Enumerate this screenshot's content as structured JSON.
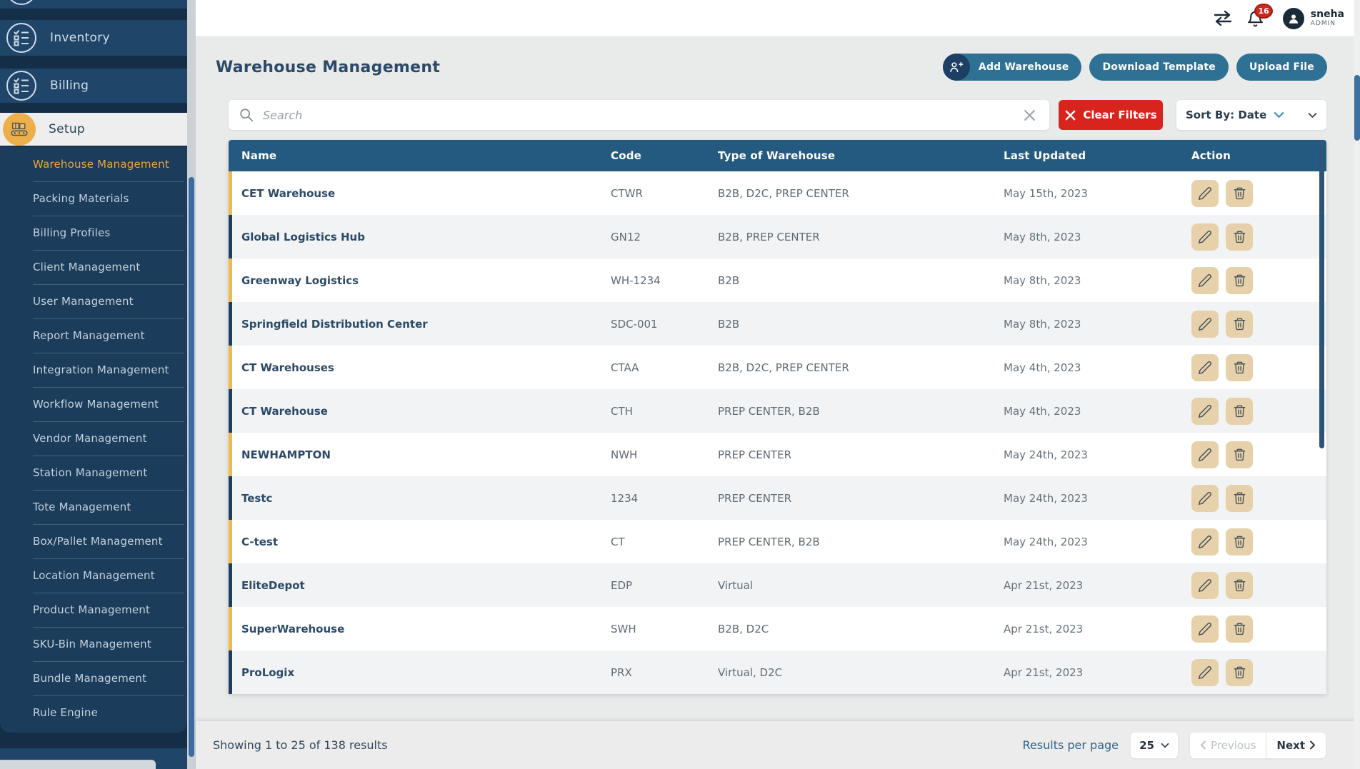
{
  "topbar": {
    "user_name": "sneha",
    "user_role": "ADMIN",
    "notification_count": "16"
  },
  "sidebar": {
    "items": [
      {
        "label": "Inventory"
      },
      {
        "label": "Billing"
      },
      {
        "label": "Setup"
      }
    ],
    "active_item": "Setup",
    "setup_subitems": [
      "Warehouse Management",
      "Packing Materials",
      "Billing Profiles",
      "Client Management",
      "User Management",
      "Report Management",
      "Integration Management",
      "Workflow Management",
      "Vendor Management",
      "Station Management",
      "Tote Management",
      "Box/Pallet Management",
      "Location Management",
      "Product Management",
      "SKU-Bin Management",
      "Bundle Management",
      "Rule Engine"
    ],
    "active_subitem": "Warehouse Management"
  },
  "page": {
    "title": "Warehouse Management",
    "actions": {
      "add_warehouse": "Add Warehouse",
      "download_template": "Download Template",
      "upload_file": "Upload File"
    }
  },
  "filters": {
    "search_placeholder": "Search",
    "clear_filters_label": "Clear Filters",
    "sort_label": "Sort By: Date"
  },
  "table": {
    "columns": [
      "Name",
      "Code",
      "Type of Warehouse",
      "Last Updated",
      "Action"
    ],
    "rows": [
      {
        "name": "CET Warehouse",
        "code": "CTWR",
        "type": "B2B, D2C, PREP CENTER",
        "updated": "May 15th, 2023"
      },
      {
        "name": "Global Logistics Hub",
        "code": "GN12",
        "type": "B2B, PREP CENTER",
        "updated": "May 8th, 2023"
      },
      {
        "name": "Greenway Logistics",
        "code": "WH-1234",
        "type": "B2B",
        "updated": "May 8th, 2023"
      },
      {
        "name": "Springfield Distribution Center",
        "code": "SDC-001",
        "type": "B2B",
        "updated": "May 8th, 2023"
      },
      {
        "name": "CT Warehouses",
        "code": "CTAA",
        "type": "B2B, D2C, PREP CENTER",
        "updated": "May 4th, 2023"
      },
      {
        "name": "CT Warehouse",
        "code": "CTH",
        "type": "PREP CENTER, B2B",
        "updated": "May 4th, 2023"
      },
      {
        "name": "NEWHAMPTON",
        "code": "NWH",
        "type": "PREP CENTER",
        "updated": "May 24th, 2023"
      },
      {
        "name": "Testc",
        "code": "1234",
        "type": "PREP CENTER",
        "updated": "May 24th, 2023"
      },
      {
        "name": "C-test",
        "code": "CT",
        "type": "PREP CENTER, B2B",
        "updated": "May 24th, 2023"
      },
      {
        "name": "EliteDepot",
        "code": "EDP",
        "type": "Virtual",
        "updated": "Apr 21st, 2023"
      },
      {
        "name": "SuperWarehouse",
        "code": "SWH",
        "type": "B2B, D2C",
        "updated": "Apr 21st, 2023"
      },
      {
        "name": "ProLogix",
        "code": "PRX",
        "type": "Virtual, D2C",
        "updated": "Apr 21st, 2023"
      }
    ]
  },
  "footer": {
    "showing_text": "Showing 1 to 25 of 138 results",
    "results_per_page_label": "Results per page",
    "page_size": "25",
    "previous_label": "Previous",
    "next_label": "Next"
  },
  "colors": {
    "accent_yellow": "#f0b94f",
    "accent_navy": "#1d3f63",
    "teal_button": "#2e7195",
    "red_button": "#d8241c",
    "table_header_bg": "#245980",
    "sidebar_bg": "#142e48"
  }
}
